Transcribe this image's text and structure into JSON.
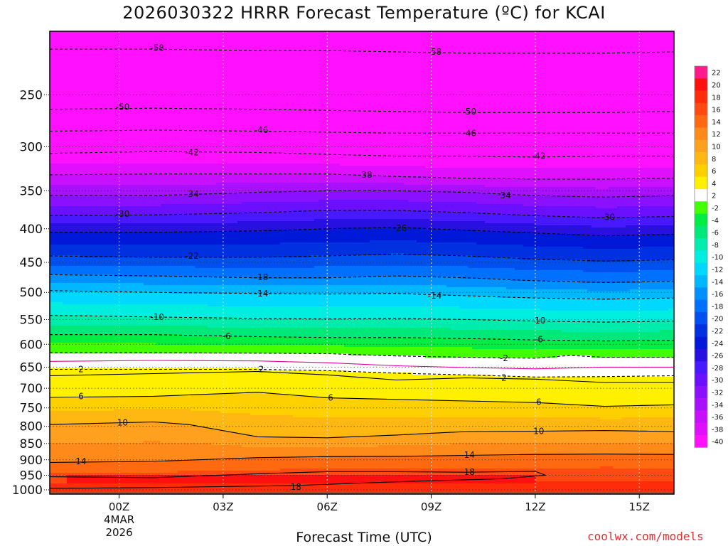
{
  "title": "2026030322 HRRR Forecast Temperature (ºC) for KCAI",
  "xlabel": "Forecast Time (UTC)",
  "credit": "coolwx.com/models",
  "chart_data": {
    "type": "heatmap",
    "title": "2026030322 HRRR Forecast Temperature (ºC) for KCAI",
    "xlabel": "Forecast Time (UTC)",
    "ylabel": "",
    "x_ticks": [
      "00Z",
      "03Z",
      "06Z",
      "09Z",
      "12Z",
      "15Z"
    ],
    "x_date_label": [
      "4MAR",
      "2026"
    ],
    "xlim": [
      -2,
      16
    ],
    "y_ticks": [
      250,
      300,
      350,
      400,
      450,
      500,
      550,
      600,
      650,
      700,
      750,
      800,
      850,
      900,
      950,
      1000
    ],
    "ylim": [
      1015,
      200
    ],
    "y_scale": "log",
    "grid": true,
    "colorbar_ticks": [
      22,
      20,
      18,
      16,
      14,
      12,
      10,
      8,
      6,
      4,
      2,
      -2,
      -4,
      -6,
      -8,
      -10,
      -12,
      -14,
      -16,
      -18,
      -20,
      -22,
      -24,
      -26,
      -28,
      -30,
      -32,
      -34,
      -36,
      -38,
      -40
    ],
    "colors": {
      "22": "#ff1a8c",
      "20": "#ff1010",
      "18": "#ff2c0a",
      "16": "#ff4a12",
      "14": "#ff6a10",
      "12": "#ff8a1a",
      "10": "#ffa01f",
      "8": "#ffb812",
      "6": "#ffd000",
      "4": "#fff000",
      "2": "#ffffff",
      "-2": "#44ff00",
      "-4": "#00ee44",
      "-6": "#00e87a",
      "-8": "#00ecac",
      "-10": "#00eee0",
      "-12": "#00d8ff",
      "-14": "#00b8ff",
      "-16": "#0090ff",
      "-18": "#0070ff",
      "-20": "#0050f0",
      "-22": "#0030e0",
      "-24": "#0018d8",
      "-26": "#2810e0",
      "-28": "#4818ff",
      "-30": "#6a10ff",
      "-32": "#8a10ff",
      "-34": "#a810ff",
      "-36": "#c810ff",
      "-38": "#e010ff",
      "-40": "#ff10ff"
    },
    "ground_color": "#a0522d",
    "contours": [
      {
        "label": "-58",
        "style": "dashed",
        "x": [
          -2,
          1,
          4,
          6,
          8,
          10,
          12,
          14,
          16
        ],
        "p": [
          213,
          213,
          214,
          214,
          215,
          216,
          216,
          216,
          215
        ]
      },
      {
        "label": "-50",
        "style": "dashed",
        "x": [
          -2,
          1,
          4,
          6,
          8,
          10,
          12,
          14,
          16
        ],
        "p": [
          263,
          262,
          263,
          264,
          265,
          266,
          266,
          266,
          265
        ]
      },
      {
        "label": "-46",
        "style": "dashed",
        "x": [
          -2,
          1,
          4,
          6,
          8,
          10,
          12,
          14,
          16
        ],
        "p": [
          284,
          283,
          284,
          285,
          286,
          286,
          286,
          286,
          286
        ]
      },
      {
        "label": "-42",
        "style": "dashed",
        "x": [
          -2,
          1,
          4,
          6,
          8,
          10,
          12,
          14,
          16
        ],
        "p": [
          307,
          305,
          306,
          308,
          310,
          310,
          311,
          310,
          310
        ]
      },
      {
        "label": "-38",
        "style": "dashed",
        "x": [
          -2,
          1,
          4,
          6,
          8,
          10,
          12,
          14,
          16
        ],
        "p": [
          331,
          330,
          330,
          330,
          333,
          335,
          336,
          336,
          335
        ]
      },
      {
        "label": "-34",
        "style": "dashed",
        "x": [
          -2,
          1,
          4,
          6,
          8,
          10,
          12,
          14,
          16
        ],
        "p": [
          356,
          356,
          352,
          350,
          350,
          352,
          356,
          358,
          356
        ]
      },
      {
        "label": "-30",
        "style": "dashed",
        "x": [
          -2,
          1,
          4,
          6,
          8,
          10,
          12,
          14,
          16
        ],
        "p": [
          382,
          381,
          378,
          375,
          375,
          378,
          382,
          385,
          383
        ]
      },
      {
        "label": "-26",
        "style": "dashed",
        "x": [
          -2,
          1,
          4,
          6,
          8,
          10,
          12,
          14,
          16
        ],
        "p": [
          405,
          405,
          403,
          400,
          398,
          402,
          406,
          410,
          408
        ]
      },
      {
        "label": "-22",
        "style": "dashed",
        "x": [
          -2,
          1,
          4,
          6,
          8,
          10,
          12,
          14,
          16
        ],
        "p": [
          440,
          442,
          442,
          440,
          437,
          440,
          445,
          448,
          446
        ]
      },
      {
        "label": "-18",
        "style": "dashed",
        "x": [
          -2,
          1,
          4,
          6,
          8,
          10,
          12,
          14,
          16
        ],
        "p": [
          470,
          472,
          475,
          475,
          472,
          475,
          480,
          483,
          481
        ]
      },
      {
        "label": "-14",
        "style": "dashed",
        "x": [
          -2,
          1,
          4,
          6,
          8,
          10,
          12,
          14,
          16
        ],
        "p": [
          497,
          500,
          502,
          503,
          502,
          506,
          510,
          512,
          510
        ]
      },
      {
        "label": "-10",
        "style": "dashed",
        "x": [
          -2,
          1,
          4,
          6,
          8,
          10,
          12,
          14,
          16
        ],
        "p": [
          542,
          545,
          548,
          549,
          548,
          550,
          553,
          555,
          553
        ]
      },
      {
        "label": "-6",
        "style": "dashed",
        "x": [
          -2,
          1,
          4,
          6,
          8,
          10,
          12,
          14,
          16
        ],
        "p": [
          580,
          580,
          584,
          586,
          586,
          588,
          591,
          593,
          592
        ]
      },
      {
        "label": "-2",
        "style": "dashed",
        "x": [
          -2,
          1,
          4,
          6,
          8,
          10,
          12,
          13,
          14,
          16
        ],
        "p": [
          618,
          618,
          619,
          620,
          625,
          628,
          630,
          624,
          628,
          628
        ]
      },
      {
        "label": "2",
        "style": "dashed",
        "x": [
          -2,
          1,
          4,
          6,
          8,
          10,
          12,
          14,
          16
        ],
        "p": [
          655,
          655,
          655,
          658,
          664,
          668,
          673,
          672,
          670
        ]
      },
      {
        "label": "2",
        "style": "solid-magenta",
        "x": [
          -2,
          1,
          4,
          6,
          8,
          10,
          12,
          14,
          16
        ],
        "p": [
          637,
          635,
          636,
          640,
          647,
          651,
          654,
          650,
          650
        ]
      },
      {
        "label": "2",
        "style": "solid",
        "x": [
          -2,
          1,
          4,
          6,
          8,
          10,
          12,
          14,
          16
        ],
        "p": [
          670,
          665,
          660,
          668,
          680,
          675,
          678,
          686,
          686
        ]
      },
      {
        "label": "6",
        "style": "solid",
        "x": [
          -2,
          1,
          4,
          6,
          8,
          10,
          12,
          14,
          16
        ],
        "p": [
          723,
          720,
          710,
          724,
          728,
          732,
          736,
          746,
          742
        ]
      },
      {
        "label": "10",
        "style": "solid",
        "x": [
          -2,
          1,
          2,
          4,
          6,
          8,
          10,
          12,
          14,
          16
        ],
        "p": [
          795,
          788,
          795,
          830,
          833,
          825,
          815,
          814,
          812,
          815
        ]
      },
      {
        "label": "14",
        "style": "solid",
        "x": [
          -2,
          1,
          4,
          6,
          8,
          10,
          12,
          14,
          16
        ],
        "p": [
          908,
          905,
          893,
          890,
          889,
          886,
          883,
          882,
          883
        ]
      },
      {
        "label": "18",
        "style": "solid",
        "x": [
          -2,
          1,
          4,
          6,
          8,
          10,
          12,
          12.3,
          11,
          8,
          5,
          1,
          -2
        ],
        "p": [
          955,
          958,
          945,
          938,
          938,
          940,
          937,
          950,
          962,
          972,
          985,
          992,
          995
        ]
      }
    ],
    "contour_labels": [
      {
        "text": "-58",
        "x": 1.1,
        "p": 212
      },
      {
        "text": "-58",
        "x": 9.1,
        "p": 215
      },
      {
        "text": "-50",
        "x": 0.1,
        "p": 261
      },
      {
        "text": "-50",
        "x": 10.1,
        "p": 265
      },
      {
        "text": "-46",
        "x": 4.1,
        "p": 283
      },
      {
        "text": "-46",
        "x": 10.1,
        "p": 286
      },
      {
        "text": "-42",
        "x": 2.1,
        "p": 306
      },
      {
        "text": "-42",
        "x": 12.1,
        "p": 310
      },
      {
        "text": "-38",
        "x": 7.1,
        "p": 331
      },
      {
        "text": "-34",
        "x": 2.1,
        "p": 354
      },
      {
        "text": "-34",
        "x": 11.1,
        "p": 356
      },
      {
        "text": "-30",
        "x": 0.1,
        "p": 380
      },
      {
        "text": "-30",
        "x": 14.1,
        "p": 384
      },
      {
        "text": "-26",
        "x": 8.1,
        "p": 399
      },
      {
        "text": "-22",
        "x": 2.1,
        "p": 440
      },
      {
        "text": "-18",
        "x": 4.1,
        "p": 474
      },
      {
        "text": "-14",
        "x": 4.1,
        "p": 502
      },
      {
        "text": "-14",
        "x": 9.1,
        "p": 506
      },
      {
        "text": "-10",
        "x": 1.1,
        "p": 545
      },
      {
        "text": "-10",
        "x": 12.1,
        "p": 552
      },
      {
        "text": "-6",
        "x": 3.1,
        "p": 583
      },
      {
        "text": "-6",
        "x": 12.1,
        "p": 590
      },
      {
        "text": "-2",
        "x": 11.1,
        "p": 630
      },
      {
        "text": "2",
        "x": -1.1,
        "p": 655
      },
      {
        "text": "2",
        "x": 4.1,
        "p": 655
      },
      {
        "text": "2",
        "x": 11.1,
        "p": 675
      },
      {
        "text": "6",
        "x": -1.1,
        "p": 720
      },
      {
        "text": "6",
        "x": 6.1,
        "p": 724
      },
      {
        "text": "6",
        "x": 12.1,
        "p": 735
      },
      {
        "text": "10",
        "x": 0.1,
        "p": 790
      },
      {
        "text": "10",
        "x": 12.1,
        "p": 814
      },
      {
        "text": "14",
        "x": -1.1,
        "p": 905
      },
      {
        "text": "14",
        "x": 10.1,
        "p": 885
      },
      {
        "text": "18",
        "x": 10.1,
        "p": 940
      },
      {
        "text": "18",
        "x": 5.1,
        "p": 990
      }
    ]
  }
}
